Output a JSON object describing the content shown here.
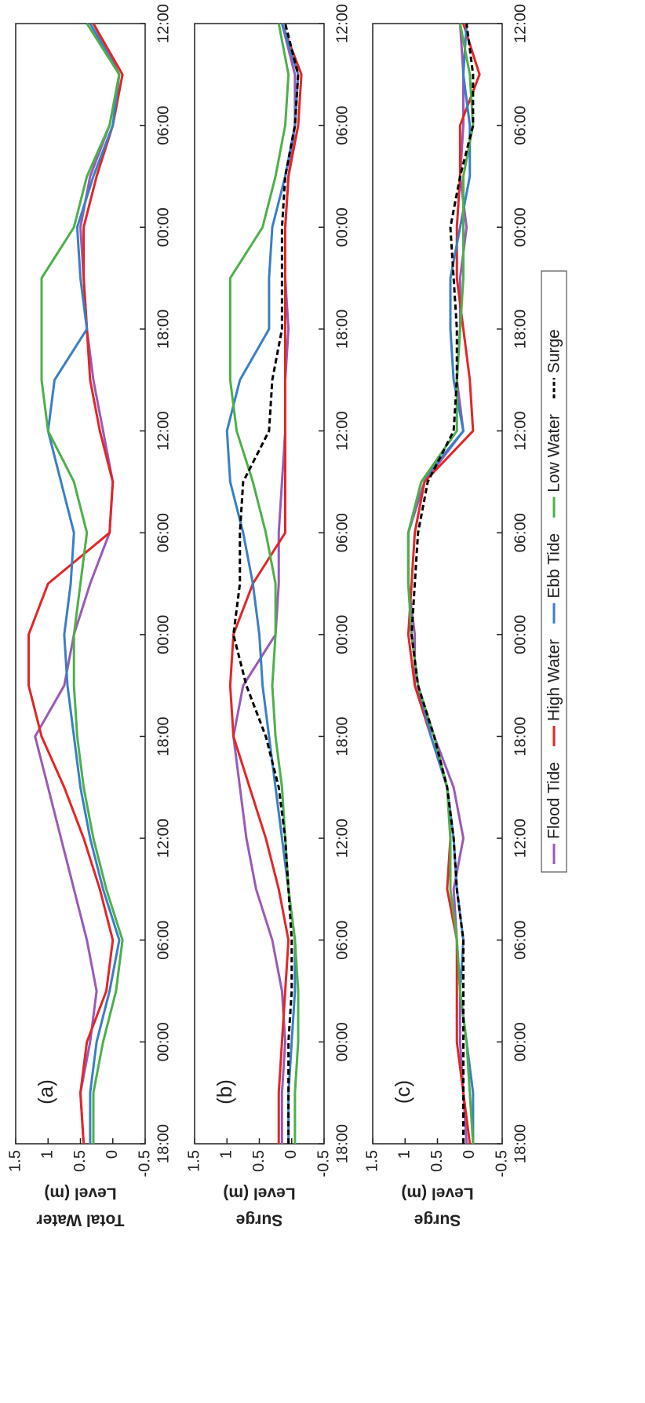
{
  "chart_data": [
    {
      "type": "line",
      "annotation": "(a)",
      "ylabel": [
        "Total Water",
        "Level (m)"
      ],
      "x": [
        0,
        3,
        6,
        9,
        12,
        15,
        18,
        21,
        24,
        27,
        30,
        33,
        36,
        39,
        42,
        45,
        48,
        51,
        54,
        57,
        60,
        63,
        66
      ],
      "xlim": [
        0,
        66
      ],
      "xticks": [
        {
          "value": 0,
          "label": "18:00"
        },
        {
          "value": 6,
          "label": "00:00"
        },
        {
          "value": 12,
          "label": "06:00"
        },
        {
          "value": 18,
          "label": "12:00"
        },
        {
          "value": 24,
          "label": "18:00"
        },
        {
          "value": 30,
          "label": "00:00"
        },
        {
          "value": 36,
          "label": "06:00"
        },
        {
          "value": 42,
          "label": "12:00"
        },
        {
          "value": 48,
          "label": "18:00"
        },
        {
          "value": 54,
          "label": "00:00"
        },
        {
          "value": 60,
          "label": "06:00"
        },
        {
          "value": 66,
          "label": "12:00"
        }
      ],
      "ylim": [
        -0.5,
        1.5
      ],
      "yticks": [
        -0.5,
        0,
        0.5,
        1,
        1.5
      ],
      "series": [
        {
          "name": "Flood Tide",
          "color": "#9b59b6",
          "values": [
            0.45,
            0.5,
            0.35,
            0.25,
            0.4,
            0.6,
            0.8,
            1.0,
            1.2,
            0.75,
            0.6,
            0.35,
            0.05,
            0.0,
            0.15,
            0.3,
            0.4,
            0.45,
            0.5,
            0.35,
            0.05,
            -0.1,
            0.3
          ]
        },
        {
          "name": "High Water",
          "color": "#e32626",
          "values": [
            0.45,
            0.5,
            0.4,
            0.1,
            0.0,
            0.2,
            0.45,
            0.75,
            1.1,
            1.3,
            1.3,
            1.0,
            0.05,
            0.0,
            0.2,
            0.35,
            0.4,
            0.45,
            0.45,
            0.25,
            0.0,
            -0.15,
            0.3
          ]
        },
        {
          "name": "Ebb Tide",
          "color": "#3a7fc4",
          "values": [
            0.35,
            0.35,
            0.25,
            0.05,
            -0.1,
            0.15,
            0.35,
            0.5,
            0.6,
            0.7,
            0.75,
            0.65,
            0.6,
            0.8,
            1.0,
            0.9,
            0.4,
            0.5,
            0.55,
            0.3,
            0.0,
            -0.1,
            0.35
          ]
        },
        {
          "name": "Low Water",
          "color": "#4db04a",
          "values": [
            0.3,
            0.3,
            0.15,
            -0.05,
            -0.15,
            0.1,
            0.3,
            0.45,
            0.55,
            0.6,
            0.6,
            0.5,
            0.4,
            0.6,
            1.0,
            1.1,
            1.1,
            1.1,
            0.6,
            0.4,
            0.05,
            -0.1,
            0.4
          ]
        }
      ]
    },
    {
      "type": "line",
      "annotation": "(b)",
      "ylabel": [
        "Surge",
        "Level (m)"
      ],
      "x": [
        0,
        3,
        6,
        9,
        12,
        15,
        18,
        21,
        24,
        27,
        30,
        33,
        36,
        39,
        42,
        45,
        48,
        51,
        54,
        57,
        60,
        63,
        66
      ],
      "xlim": [
        0,
        66
      ],
      "xticks": [
        {
          "value": 0,
          "label": "18:00"
        },
        {
          "value": 6,
          "label": "00:00"
        },
        {
          "value": 12,
          "label": "06:00"
        },
        {
          "value": 18,
          "label": "12:00"
        },
        {
          "value": 24,
          "label": "18:00"
        },
        {
          "value": 30,
          "label": "00:00"
        },
        {
          "value": 36,
          "label": "06:00"
        },
        {
          "value": 42,
          "label": "12:00"
        },
        {
          "value": 48,
          "label": "18:00"
        },
        {
          "value": 54,
          "label": "00:00"
        },
        {
          "value": 60,
          "label": "06:00"
        },
        {
          "value": 66,
          "label": "12:00"
        }
      ],
      "ylim": [
        -0.5,
        1.5
      ],
      "yticks": [
        -0.5,
        0,
        0.5,
        1,
        1.5
      ],
      "series": [
        {
          "name": "Flood Tide",
          "color": "#9b59b6",
          "values": [
            0.15,
            0.15,
            0.1,
            0.15,
            0.3,
            0.55,
            0.7,
            0.8,
            0.9,
            0.75,
            0.25,
            0.2,
            0.2,
            0.15,
            0.1,
            0.1,
            0.05,
            0.1,
            0.1,
            0.05,
            -0.05,
            -0.05,
            0.15
          ]
        },
        {
          "name": "High Water",
          "color": "#e32626",
          "values": [
            0.2,
            0.2,
            0.15,
            0.1,
            0.05,
            0.2,
            0.4,
            0.65,
            0.9,
            0.95,
            0.9,
            0.6,
            0.1,
            0.1,
            0.1,
            0.1,
            0.1,
            0.1,
            0.1,
            0.05,
            -0.1,
            -0.15,
            0.15
          ]
        },
        {
          "name": "Ebb Tide",
          "color": "#3a7fc4",
          "values": [
            0.05,
            0.05,
            0.0,
            -0.05,
            -0.05,
            0.05,
            0.15,
            0.25,
            0.35,
            0.45,
            0.5,
            0.6,
            0.75,
            0.95,
            1.0,
            0.8,
            0.35,
            0.35,
            0.3,
            0.1,
            -0.05,
            -0.1,
            0.15
          ]
        },
        {
          "name": "Low Water",
          "color": "#4db04a",
          "values": [
            -0.05,
            -0.05,
            -0.1,
            -0.1,
            -0.05,
            0.05,
            0.1,
            0.15,
            0.25,
            0.3,
            0.25,
            0.25,
            0.4,
            0.6,
            0.85,
            0.95,
            0.95,
            0.95,
            0.45,
            0.25,
            0.1,
            0.05,
            0.2
          ]
        },
        {
          "name": "Surge",
          "color": "#000000",
          "dashed": true,
          "values": [
            0.05,
            0.05,
            0.05,
            0.0,
            0.0,
            0.05,
            0.1,
            0.2,
            0.4,
            0.7,
            0.9,
            0.8,
            0.8,
            0.75,
            0.35,
            0.3,
            0.15,
            0.15,
            0.15,
            0.1,
            -0.05,
            -0.1,
            0.1
          ]
        }
      ]
    },
    {
      "type": "line",
      "annotation": "(c)",
      "ylabel": [
        "Surge",
        "Level (m)"
      ],
      "x": [
        0,
        3,
        6,
        9,
        12,
        15,
        18,
        21,
        24,
        27,
        30,
        33,
        36,
        39,
        42,
        45,
        48,
        51,
        54,
        57,
        60,
        63,
        66
      ],
      "xlim": [
        0,
        66
      ],
      "xticks": [
        {
          "value": 0,
          "label": "18:00"
        },
        {
          "value": 6,
          "label": "00:00"
        },
        {
          "value": 12,
          "label": "06:00"
        },
        {
          "value": 18,
          "label": "12:00"
        },
        {
          "value": 24,
          "label": "18:00"
        },
        {
          "value": 30,
          "label": "00:00"
        },
        {
          "value": 36,
          "label": "06:00"
        },
        {
          "value": 42,
          "label": "12:00"
        },
        {
          "value": 48,
          "label": "18:00"
        },
        {
          "value": 54,
          "label": "00:00"
        },
        {
          "value": 60,
          "label": "06:00"
        },
        {
          "value": 66,
          "label": "12:00"
        }
      ],
      "ylim": [
        -0.5,
        1.5
      ],
      "yticks": [
        -0.5,
        0,
        0.5,
        1,
        1.5
      ],
      "series": [
        {
          "name": "Flood Tide",
          "color": "#9b59b6",
          "values": [
            0.05,
            0.1,
            0.15,
            0.15,
            0.2,
            0.25,
            0.1,
            0.25,
            0.55,
            0.85,
            0.85,
            0.95,
            0.95,
            0.7,
            0.1,
            0.2,
            0.15,
            0.15,
            0.05,
            0.15,
            0.1,
            0.1,
            0.15
          ]
        },
        {
          "name": "High Water",
          "color": "#e32626",
          "values": [
            0.0,
            0.1,
            0.2,
            0.2,
            0.2,
            0.35,
            0.3,
            0.35,
            0.6,
            0.85,
            0.95,
            0.9,
            0.85,
            0.7,
            -0.05,
            0.0,
            0.1,
            0.2,
            0.2,
            0.15,
            0.15,
            -0.15,
            0.1
          ]
        },
        {
          "name": "Ebb Tide",
          "color": "#3a7fc4",
          "values": [
            -0.05,
            -0.05,
            0.05,
            0.15,
            0.1,
            0.2,
            0.25,
            0.35,
            0.6,
            0.8,
            0.9,
            0.95,
            0.95,
            0.75,
            0.1,
            0.25,
            0.3,
            0.3,
            0.15,
            0.0,
            0.0,
            0.1,
            0.05
          ]
        },
        {
          "name": "Low Water",
          "color": "#4db04a",
          "values": [
            -0.05,
            0.0,
            0.05,
            0.15,
            0.2,
            0.3,
            0.3,
            0.35,
            0.55,
            0.8,
            0.9,
            0.95,
            0.95,
            0.75,
            0.2,
            0.2,
            0.15,
            0.1,
            0.1,
            0.1,
            -0.05,
            0.0,
            0.15
          ]
        },
        {
          "name": "Surge",
          "color": "#000000",
          "dashed": true,
          "values": [
            0.1,
            0.1,
            0.1,
            0.1,
            0.1,
            0.2,
            0.25,
            0.35,
            0.55,
            0.8,
            0.9,
            0.85,
            0.8,
            0.65,
            0.25,
            0.2,
            0.2,
            0.25,
            0.3,
            0.15,
            -0.05,
            -0.05,
            0.05
          ]
        }
      ]
    }
  ]
}
